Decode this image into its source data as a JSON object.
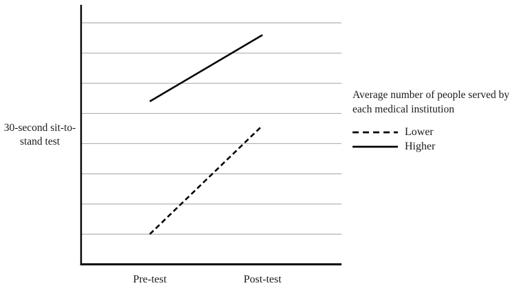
{
  "figure": {
    "y_axis_label_lines": [
      "30-second sit-to-",
      "stand test"
    ],
    "x_tick_labels": [
      "Pre-test",
      "Post-test"
    ],
    "legend": {
      "title_lines": [
        "Average number of people served by",
        "each medical institution"
      ],
      "items": [
        {
          "label": "Lower",
          "line_style": "dashed"
        },
        {
          "label": "Higher",
          "line_style": "solid"
        }
      ]
    }
  },
  "chart_data": {
    "type": "line",
    "categories": [
      "Pre-test",
      "Post-test"
    ],
    "series": [
      {
        "name": "Lower",
        "line_style": "dashed",
        "values": [
          1.0,
          4.6
        ]
      },
      {
        "name": "Higher",
        "line_style": "solid",
        "values": [
          5.4,
          7.6
        ]
      }
    ],
    "title": "",
    "xlabel": "",
    "ylabel": "30-second sit-to-stand test",
    "legend_title": "Average number of people served by each medical institution",
    "legend_position": "right",
    "ylim": [
      0,
      8.6
    ],
    "gridline_values": [
      1,
      2,
      3,
      4,
      5,
      6,
      7,
      8
    ],
    "grid": "horizontal",
    "y_tick_labels": "none",
    "colors": {
      "line": "#000000",
      "gridline": "#b0b0b0",
      "axis": "#000000"
    }
  }
}
